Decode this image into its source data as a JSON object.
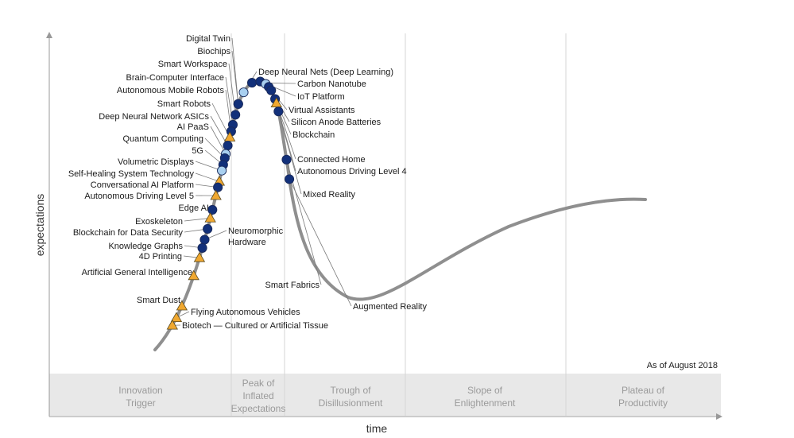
{
  "chart_data": {
    "type": "scatter",
    "title": "",
    "xlabel": "time",
    "ylabel": "expectations",
    "annotation": "As of August 2018",
    "phases": [
      {
        "lines": [
          "Innovation",
          "Trigger"
        ]
      },
      {
        "lines": [
          "Peak of",
          "Inflated",
          "Expectations"
        ]
      },
      {
        "lines": [
          "Trough of",
          "Disillusionment"
        ]
      },
      {
        "lines": [
          "Slope of",
          "Enlightenment"
        ]
      },
      {
        "lines": [
          "Plateau of",
          "Productivity"
        ]
      }
    ],
    "legend": [
      {
        "marker": "circle-light",
        "color": "#a9d0f0"
      },
      {
        "marker": "circle-dark",
        "color": "#12307a"
      },
      {
        "marker": "triangle",
        "color": "#f0a830"
      }
    ],
    "points": [
      {
        "name": "Digital Twin",
        "t": 0.305,
        "marker": "circle-dark"
      },
      {
        "name": "Biochips",
        "t": 0.305,
        "marker": "circle-dark"
      },
      {
        "name": "Smart Workspace",
        "t": 0.292,
        "marker": "circle-dark"
      },
      {
        "name": "Brain-Computer Interface",
        "t": 0.28,
        "marker": "circle-dark"
      },
      {
        "name": "Autonomous Mobile Robots",
        "t": 0.272,
        "marker": "circle-dark"
      },
      {
        "name": "Smart Robots",
        "t": 0.265,
        "marker": "triangle"
      },
      {
        "name": "Deep Neural Network ASICs",
        "t": 0.255,
        "marker": "circle-dark"
      },
      {
        "name": "AI PaaS",
        "t": 0.245,
        "marker": "circle-light"
      },
      {
        "name": "Quantum Computing",
        "t": 0.24,
        "marker": "circle-dark"
      },
      {
        "name": "5G",
        "t": 0.232,
        "marker": "circle-dark"
      },
      {
        "name": "Volumetric Displays",
        "t": 0.225,
        "marker": "circle-light"
      },
      {
        "name": "Self-Healing System Technology",
        "t": 0.212,
        "marker": "triangle"
      },
      {
        "name": "Conversational AI Platform",
        "t": 0.205,
        "marker": "circle-dark"
      },
      {
        "name": "Autonomous Driving Level 5",
        "t": 0.195,
        "marker": "triangle"
      },
      {
        "name": "Edge AI",
        "t": 0.178,
        "marker": "circle-dark"
      },
      {
        "name": "Exoskeleton",
        "t": 0.168,
        "marker": "triangle"
      },
      {
        "name": "Blockchain for Data Security",
        "t": 0.155,
        "marker": "circle-dark"
      },
      {
        "name": "Neuromorphic Hardware",
        "t": 0.142,
        "marker": "circle-dark"
      },
      {
        "name": "Knowledge Graphs",
        "t": 0.132,
        "marker": "circle-dark"
      },
      {
        "name": "4D Printing",
        "t": 0.12,
        "marker": "triangle"
      },
      {
        "name": "Artificial General Intelligence",
        "t": 0.098,
        "marker": "triangle"
      },
      {
        "name": "Smart Dust",
        "t": 0.06,
        "marker": "triangle"
      },
      {
        "name": "Flying Autonomous Vehicles",
        "t": 0.045,
        "marker": "triangle"
      },
      {
        "name": "Biotech — Cultured or Artificial Tissue",
        "t": 0.035,
        "marker": "triangle"
      },
      {
        "name": "Deep Neural Nets (Deep Learning)",
        "t": 0.32,
        "marker": "circle-light"
      },
      {
        "name": "Carbon Nanotube",
        "t": 0.335,
        "marker": "circle-dark"
      },
      {
        "name": "IoT Platform",
        "t": 0.345,
        "marker": "circle-dark"
      },
      {
        "name": "Virtual Assistants",
        "t": 0.352,
        "marker": "circle-light"
      },
      {
        "name": "Silicon Anode Batteries",
        "t": 0.357,
        "marker": "circle-dark"
      },
      {
        "name": "Blockchain",
        "t": 0.362,
        "marker": "circle-dark"
      },
      {
        "name": "Connected Home",
        "t": 0.373,
        "marker": "circle-dark"
      },
      {
        "name": "Autonomous Driving Level 4",
        "t": 0.378,
        "marker": "triangle"
      },
      {
        "name": "Mixed Reality",
        "t": 0.388,
        "marker": "circle-dark"
      },
      {
        "name": "Smart Fabrics",
        "t": 0.445,
        "marker": "circle-dark"
      },
      {
        "name": "Augmented Reality",
        "t": 0.468,
        "marker": "circle-dark"
      }
    ]
  }
}
